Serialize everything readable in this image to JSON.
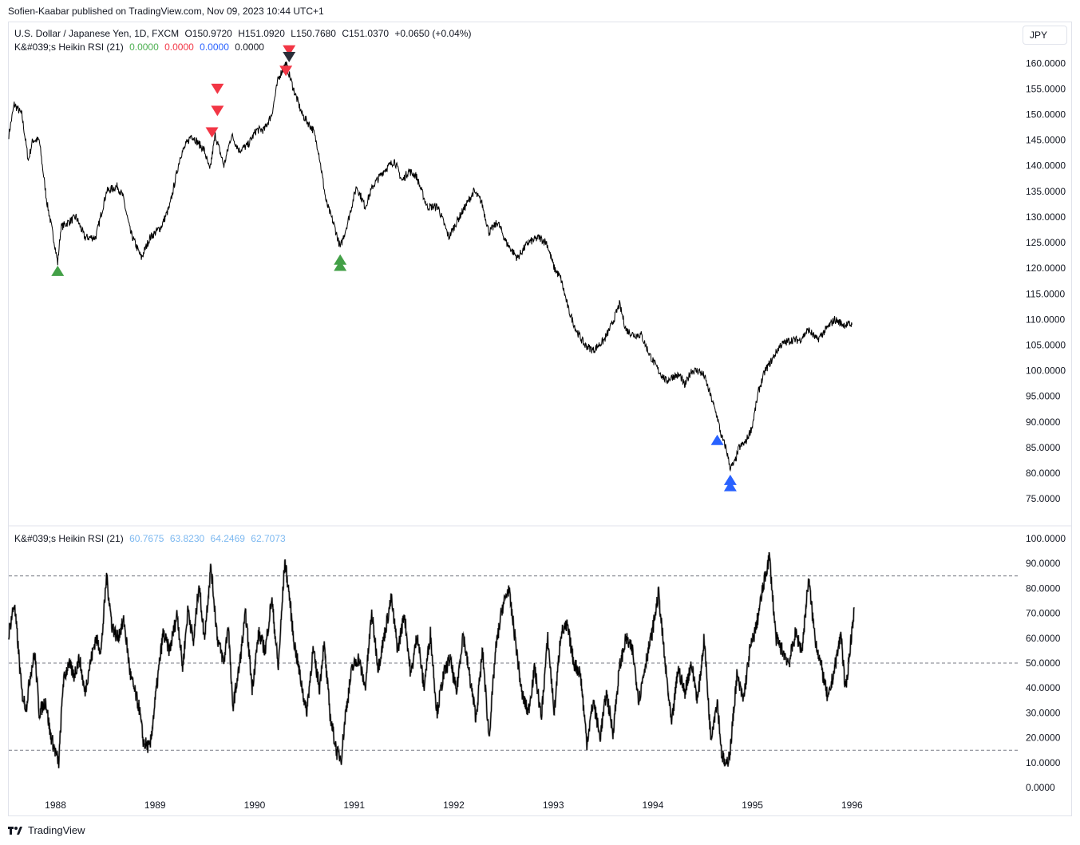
{
  "header": {
    "publisher": "Sofien-Kaabar published on TradingView.com, Nov 09, 2023 10:44 UTC+1"
  },
  "main_legend": {
    "symbol": "U.S. Dollar / Japanese Yen, 1D, FXCM",
    "open": "O150.9720",
    "high": "H151.0920",
    "low": "L150.7680",
    "close": "C151.0370",
    "change": "+0.0650 (+0.04%)",
    "indicator_name": "K&#039;s Heikin RSI (21)",
    "indicator_values": [
      "0.0000",
      "0.0000",
      "0.0000",
      "0.0000"
    ],
    "indicator_colors": [
      "#4caf50",
      "#f23645",
      "#2962ff",
      "#131722"
    ]
  },
  "sub_legend": {
    "indicator_name": "K&#039;s Heikin RSI (21)",
    "values": [
      "60.7675",
      "63.8230",
      "64.2469",
      "62.7073"
    ],
    "value_color": "#7cb8f0"
  },
  "currency_button": "JPY",
  "footer": {
    "brand": "TradingView"
  },
  "chart_data": [
    {
      "type": "line",
      "series": [
        {
          "name": "U.S. Dollar / Japanese Yen",
          "color": "#000000"
        }
      ],
      "y_ticks": [
        "160.0000",
        "155.0000",
        "150.0000",
        "145.0000",
        "140.0000",
        "135.0000",
        "130.0000",
        "125.0000",
        "120.0000",
        "115.0000",
        "110.0000",
        "105.0000",
        "100.0000",
        "95.0000",
        "90.0000",
        "85.0000",
        "80.0000",
        "75.0000"
      ],
      "ylim": [
        73,
        163
      ],
      "xlim": [
        1987.5,
        1996.8
      ],
      "x_ticks": [
        "1988",
        "1989",
        "1990",
        "1991",
        "1992",
        "1993",
        "1994",
        "1995",
        "1996"
      ],
      "price_path": [
        [
          1987.5,
          146
        ],
        [
          1987.55,
          152
        ],
        [
          1987.62,
          150
        ],
        [
          1987.68,
          141
        ],
        [
          1987.72,
          145
        ],
        [
          1987.78,
          145
        ],
        [
          1987.85,
          133
        ],
        [
          1987.92,
          125
        ],
        [
          1987.95,
          121
        ],
        [
          1987.98,
          128
        ],
        [
          1988.05,
          129
        ],
        [
          1988.12,
          130
        ],
        [
          1988.2,
          126
        ],
        [
          1988.3,
          126
        ],
        [
          1988.4,
          135
        ],
        [
          1988.5,
          136
        ],
        [
          1988.55,
          134
        ],
        [
          1988.62,
          127
        ],
        [
          1988.72,
          122
        ],
        [
          1988.8,
          126
        ],
        [
          1988.9,
          128
        ],
        [
          1988.98,
          132
        ],
        [
          1989.08,
          142
        ],
        [
          1989.18,
          146
        ],
        [
          1989.3,
          143
        ],
        [
          1989.35,
          139
        ],
        [
          1989.4,
          146
        ],
        [
          1989.48,
          140
        ],
        [
          1989.55,
          146
        ],
        [
          1989.62,
          143
        ],
        [
          1989.7,
          144
        ],
        [
          1989.78,
          147
        ],
        [
          1989.85,
          147
        ],
        [
          1989.92,
          150
        ],
        [
          1989.98,
          157
        ],
        [
          1990.05,
          160
        ],
        [
          1990.12,
          155
        ],
        [
          1990.2,
          150
        ],
        [
          1990.3,
          147
        ],
        [
          1990.35,
          143
        ],
        [
          1990.42,
          133
        ],
        [
          1990.5,
          128
        ],
        [
          1990.55,
          124
        ],
        [
          1990.62,
          129
        ],
        [
          1990.7,
          136
        ],
        [
          1990.78,
          132
        ],
        [
          1990.85,
          136
        ],
        [
          1990.95,
          139
        ],
        [
          1991.05,
          141
        ],
        [
          1991.12,
          137
        ],
        [
          1991.18,
          139
        ],
        [
          1991.25,
          138
        ],
        [
          1991.35,
          132
        ],
        [
          1991.45,
          132
        ],
        [
          1991.55,
          126
        ],
        [
          1991.62,
          129
        ],
        [
          1991.7,
          132
        ],
        [
          1991.78,
          135
        ],
        [
          1991.85,
          133
        ],
        [
          1991.92,
          127
        ],
        [
          1992.0,
          129
        ],
        [
          1992.08,
          125
        ],
        [
          1992.18,
          122
        ],
        [
          1992.28,
          125
        ],
        [
          1992.38,
          126
        ],
        [
          1992.45,
          125
        ],
        [
          1992.52,
          120
        ],
        [
          1992.58,
          118
        ],
        [
          1992.65,
          112
        ],
        [
          1992.72,
          108
        ],
        [
          1992.8,
          105
        ],
        [
          1992.88,
          104
        ],
        [
          1992.98,
          106
        ],
        [
          1993.05,
          109
        ],
        [
          1993.12,
          113
        ],
        [
          1993.18,
          108
        ],
        [
          1993.25,
          107
        ],
        [
          1993.32,
          107
        ],
        [
          1993.4,
          103
        ],
        [
          1993.48,
          100
        ],
        [
          1993.55,
          98
        ],
        [
          1993.62,
          99
        ],
        [
          1993.68,
          99
        ],
        [
          1993.72,
          97
        ],
        [
          1993.78,
          100
        ],
        [
          1993.85,
          100
        ],
        [
          1993.9,
          99
        ],
        [
          1993.96,
          95
        ],
        [
          1994.02,
          91
        ],
        [
          1994.06,
          87
        ],
        [
          1994.1,
          85
        ],
        [
          1994.14,
          81
        ],
        [
          1994.18,
          82
        ],
        [
          1994.22,
          85
        ],
        [
          1994.28,
          86
        ],
        [
          1994.34,
          89
        ],
        [
          1994.4,
          96
        ],
        [
          1994.46,
          100
        ],
        [
          1994.52,
          102
        ],
        [
          1994.6,
          105
        ],
        [
          1994.7,
          106
        ],
        [
          1994.78,
          106
        ],
        [
          1994.86,
          108
        ],
        [
          1994.94,
          106
        ],
        [
          1995.02,
          108
        ],
        [
          1995.1,
          110
        ],
        [
          1995.18,
          109
        ],
        [
          1995.26,
          109
        ]
      ],
      "x_map": [
        [
          1988,
          1987.93
        ],
        [
          1996,
          1995.26
        ]
      ],
      "signals": [
        {
          "x": 1987.95,
          "y": 119.5,
          "dir": "up",
          "color": "#43a047"
        },
        {
          "x": 1989.37,
          "y": 146.5,
          "dir": "down",
          "color": "#f23645"
        },
        {
          "x": 1989.42,
          "y": 150.7,
          "dir": "down",
          "color": "#f23645"
        },
        {
          "x": 1989.42,
          "y": 155.0,
          "dir": "down",
          "color": "#f23645"
        },
        {
          "x": 1990.05,
          "y": 158.5,
          "dir": "down",
          "color": "#f23645"
        },
        {
          "x": 1990.08,
          "y": 162.5,
          "dir": "down",
          "color": "#f23645"
        },
        {
          "x": 1990.08,
          "y": 161.2,
          "dir": "down",
          "color": "#2a2e39"
        },
        {
          "x": 1990.55,
          "y": 120.5,
          "dir": "up",
          "color": "#43a047"
        },
        {
          "x": 1990.55,
          "y": 121.7,
          "dir": "up",
          "color": "#43a047"
        },
        {
          "x": 1994.02,
          "y": 86.5,
          "dir": "up",
          "color": "#2962ff"
        },
        {
          "x": 1994.14,
          "y": 77.5,
          "dir": "up",
          "color": "#2962ff"
        },
        {
          "x": 1994.14,
          "y": 78.7,
          "dir": "up",
          "color": "#2962ff"
        }
      ]
    },
    {
      "type": "line",
      "series": [
        {
          "name": "K&#039;s Heikin RSI (21)",
          "color": "#000000"
        }
      ],
      "y_ticks": [
        "100.0000",
        "90.0000",
        "80.0000",
        "70.0000",
        "60.0000",
        "50.0000",
        "40.0000",
        "30.0000",
        "20.0000",
        "10.0000",
        "0.0000"
      ],
      "ylim": [
        0,
        100
      ],
      "levels": [
        85,
        50,
        15
      ],
      "rsi_path": [
        [
          1987.5,
          62
        ],
        [
          1987.55,
          74
        ],
        [
          1987.58,
          60
        ],
        [
          1987.62,
          38
        ],
        [
          1987.66,
          32
        ],
        [
          1987.7,
          46
        ],
        [
          1987.74,
          54
        ],
        [
          1987.78,
          30
        ],
        [
          1987.84,
          35
        ],
        [
          1987.88,
          22
        ],
        [
          1987.93,
          14
        ],
        [
          1987.96,
          10
        ],
        [
          1988.0,
          42
        ],
        [
          1988.05,
          50
        ],
        [
          1988.1,
          45
        ],
        [
          1988.15,
          52
        ],
        [
          1988.2,
          38
        ],
        [
          1988.24,
          48
        ],
        [
          1988.3,
          60
        ],
        [
          1988.35,
          55
        ],
        [
          1988.4,
          85
        ],
        [
          1988.45,
          65
        ],
        [
          1988.5,
          60
        ],
        [
          1988.56,
          67
        ],
        [
          1988.62,
          45
        ],
        [
          1988.7,
          32
        ],
        [
          1988.74,
          18
        ],
        [
          1988.8,
          16
        ],
        [
          1988.86,
          40
        ],
        [
          1988.92,
          62
        ],
        [
          1988.98,
          55
        ],
        [
          1989.05,
          70
        ],
        [
          1989.1,
          48
        ],
        [
          1989.15,
          72
        ],
        [
          1989.2,
          58
        ],
        [
          1989.25,
          82
        ],
        [
          1989.3,
          60
        ],
        [
          1989.36,
          89
        ],
        [
          1989.42,
          60
        ],
        [
          1989.48,
          50
        ],
        [
          1989.52,
          66
        ],
        [
          1989.56,
          32
        ],
        [
          1989.62,
          48
        ],
        [
          1989.68,
          70
        ],
        [
          1989.74,
          40
        ],
        [
          1989.8,
          62
        ],
        [
          1989.86,
          55
        ],
        [
          1989.92,
          76
        ],
        [
          1989.98,
          48
        ],
        [
          1990.04,
          91
        ],
        [
          1990.08,
          78
        ],
        [
          1990.12,
          60
        ],
        [
          1990.18,
          45
        ],
        [
          1990.24,
          30
        ],
        [
          1990.3,
          55
        ],
        [
          1990.36,
          40
        ],
        [
          1990.4,
          58
        ],
        [
          1990.46,
          28
        ],
        [
          1990.52,
          14
        ],
        [
          1990.56,
          12
        ],
        [
          1990.6,
          30
        ],
        [
          1990.66,
          48
        ],
        [
          1990.72,
          52
        ],
        [
          1990.78,
          40
        ],
        [
          1990.84,
          70
        ],
        [
          1990.9,
          48
        ],
        [
          1990.96,
          62
        ],
        [
          1991.02,
          76
        ],
        [
          1991.08,
          55
        ],
        [
          1991.14,
          70
        ],
        [
          1991.2,
          45
        ],
        [
          1991.26,
          62
        ],
        [
          1991.32,
          40
        ],
        [
          1991.38,
          62
        ],
        [
          1991.44,
          30
        ],
        [
          1991.5,
          45
        ],
        [
          1991.56,
          52
        ],
        [
          1991.62,
          38
        ],
        [
          1991.68,
          62
        ],
        [
          1991.74,
          45
        ],
        [
          1991.8,
          28
        ],
        [
          1991.86,
          55
        ],
        [
          1991.92,
          20
        ],
        [
          1991.98,
          55
        ],
        [
          1992.04,
          72
        ],
        [
          1992.1,
          80
        ],
        [
          1992.16,
          60
        ],
        [
          1992.22,
          38
        ],
        [
          1992.28,
          30
        ],
        [
          1992.34,
          48
        ],
        [
          1992.4,
          28
        ],
        [
          1992.46,
          60
        ],
        [
          1992.52,
          30
        ],
        [
          1992.58,
          62
        ],
        [
          1992.64,
          65
        ],
        [
          1992.7,
          50
        ],
        [
          1992.76,
          46
        ],
        [
          1992.82,
          18
        ],
        [
          1992.88,
          35
        ],
        [
          1992.94,
          20
        ],
        [
          1993.0,
          38
        ],
        [
          1993.06,
          22
        ],
        [
          1993.12,
          48
        ],
        [
          1993.18,
          60
        ],
        [
          1993.24,
          55
        ],
        [
          1993.3,
          35
        ],
        [
          1993.36,
          50
        ],
        [
          1993.42,
          62
        ],
        [
          1993.48,
          78
        ],
        [
          1993.54,
          50
        ],
        [
          1993.6,
          25
        ],
        [
          1993.66,
          48
        ],
        [
          1993.72,
          38
        ],
        [
          1993.78,
          50
        ],
        [
          1993.84,
          35
        ],
        [
          1993.9,
          60
        ],
        [
          1993.96,
          20
        ],
        [
          1994.02,
          35
        ],
        [
          1994.06,
          14
        ],
        [
          1994.1,
          8
        ],
        [
          1994.14,
          15
        ],
        [
          1994.2,
          45
        ],
        [
          1994.26,
          35
        ],
        [
          1994.32,
          55
        ],
        [
          1994.38,
          65
        ],
        [
          1994.44,
          80
        ],
        [
          1994.5,
          93
        ],
        [
          1994.56,
          60
        ],
        [
          1994.62,
          55
        ],
        [
          1994.68,
          50
        ],
        [
          1994.74,
          62
        ],
        [
          1994.8,
          55
        ],
        [
          1994.86,
          84
        ],
        [
          1994.92,
          60
        ],
        [
          1994.98,
          48
        ],
        [
          1995.04,
          35
        ],
        [
          1995.1,
          48
        ],
        [
          1995.16,
          62
        ],
        [
          1995.2,
          38
        ],
        [
          1995.24,
          55
        ],
        [
          1995.28,
          72
        ]
      ]
    }
  ]
}
